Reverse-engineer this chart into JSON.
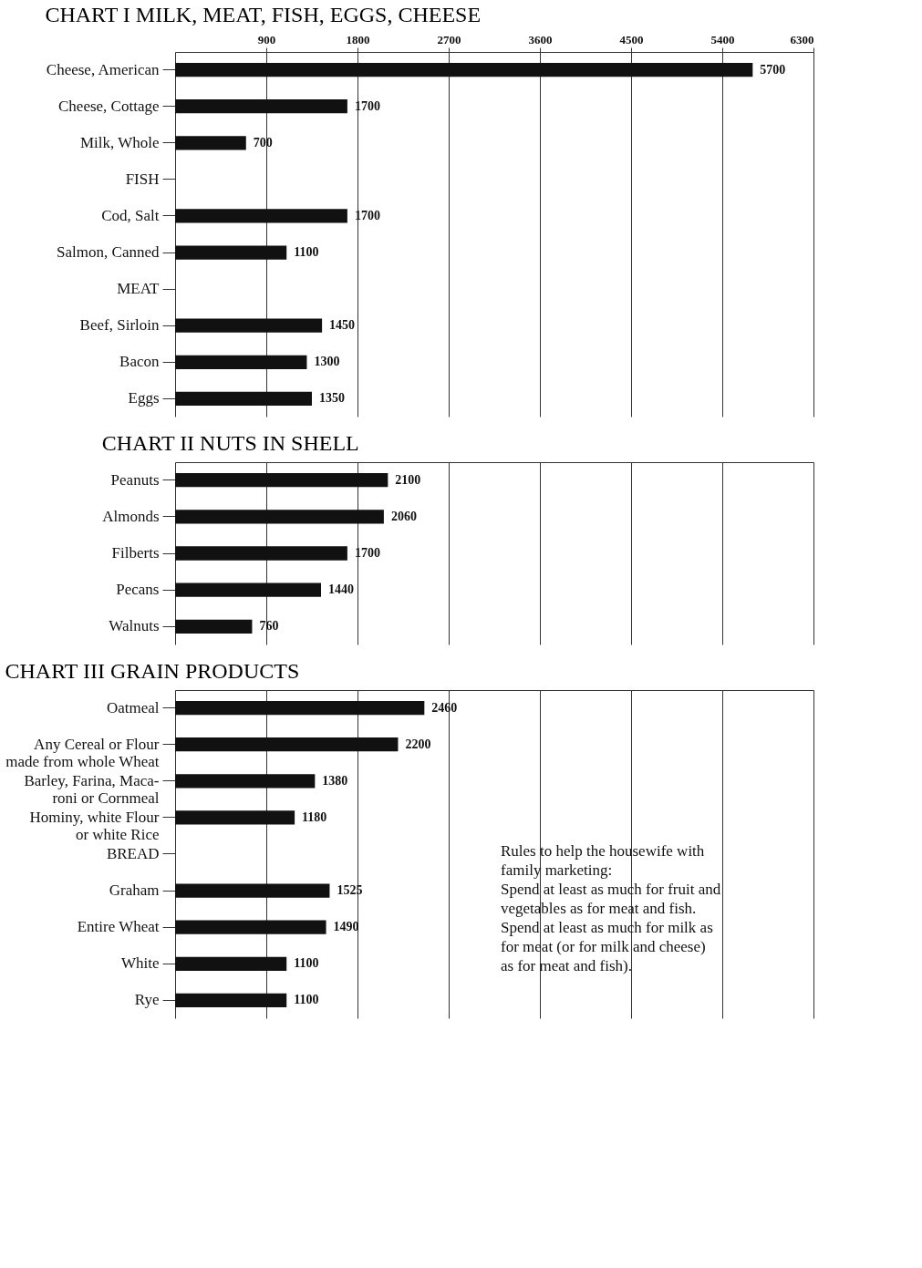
{
  "chart_data": [
    {
      "type": "bar",
      "orientation": "horizontal",
      "title": "CHART I  MILK, MEAT, FISH, EGGS, CHEESE",
      "categories": [
        "Cheese, American",
        "Cheese, Cottage",
        "Milk, Whole",
        "FISH",
        "Cod, Salt",
        "Salmon, Canned",
        "MEAT",
        "Beef, Sirloin",
        "Bacon",
        "Eggs"
      ],
      "values": [
        5700,
        1700,
        700,
        null,
        1700,
        1100,
        null,
        1450,
        1300,
        1350
      ],
      "color": "#111111",
      "data_labels": true,
      "xlim": [
        0,
        6300
      ],
      "xticks": [
        900,
        1800,
        2700,
        3600,
        4500,
        5400,
        6300
      ],
      "grid": "x"
    },
    {
      "type": "bar",
      "orientation": "horizontal",
      "title": "CHART II  NUTS IN SHELL",
      "categories": [
        "Peanuts",
        "Almonds",
        "Filberts",
        "Pecans",
        "Walnuts"
      ],
      "values": [
        2100,
        2060,
        1700,
        1440,
        760
      ],
      "color": "#111111",
      "data_labels": true,
      "xlim": [
        0,
        6300
      ],
      "xticks": [
        900,
        1800,
        2700,
        3600,
        4500,
        5400,
        6300
      ],
      "grid": "x",
      "tick_labels": "y"
    },
    {
      "type": "bar",
      "orientation": "horizontal",
      "title": "CHART III  GRAIN PRODUCTS",
      "categories": [
        "Oatmeal",
        "Any Cereal or Flour\nmade from whole Wheat",
        "Barley, Farina, Maca-\nroni or Cornmeal",
        "Hominy, white Flour\nor white Rice",
        "BREAD",
        "Graham",
        "Entire Wheat",
        "White",
        "Rye"
      ],
      "values": [
        2460,
        2200,
        1380,
        1180,
        null,
        1525,
        1490,
        1100,
        1100
      ],
      "color": "#111111",
      "data_labels": true,
      "xlim": [
        0,
        6300
      ],
      "xticks": [
        900,
        1800,
        2700,
        3600,
        4500,
        5400,
        6300
      ],
      "grid": "x",
      "tick_labels": "y",
      "annotations": [
        "Rules to help the housewife with\nfamily marketing:\nSpend at least as much for fruit and\n    vegetables as for meat and fish.\nSpend at least as much for milk as\n    for meat (or for milk and cheese)\n    as for meat and fish)."
      ]
    }
  ]
}
